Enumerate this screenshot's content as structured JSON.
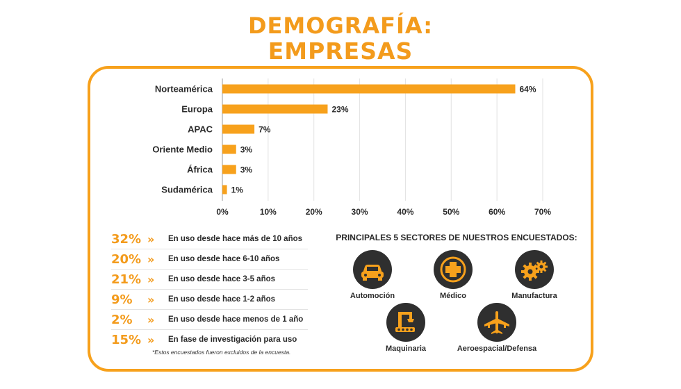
{
  "title_line1": "DEMOGRAFÍA:",
  "title_line2": "EMPRESAS",
  "chart_data": {
    "type": "bar",
    "orientation": "horizontal",
    "categories": [
      "Norteamérica",
      "Europa",
      "APAC",
      "Oriente Medio",
      "África",
      "Sudamérica"
    ],
    "values": [
      64,
      23,
      7,
      3,
      3,
      1
    ],
    "value_labels": [
      "64%",
      "23%",
      "7%",
      "3%",
      "3%",
      "1%"
    ],
    "xlim": [
      0,
      70
    ],
    "x_ticks": [
      "0%",
      "10%",
      "20%",
      "30%",
      "40%",
      "50%",
      "60%",
      "70%"
    ],
    "grid": true,
    "color": "#f7a11c"
  },
  "usage_stats": [
    {
      "pct": "32%",
      "arrow": "»",
      "text": "En uso desde hace más de 10 años"
    },
    {
      "pct": "20%",
      "arrow": "»",
      "text": "En uso desde hace 6-10 años"
    },
    {
      "pct": "21%",
      "arrow": "»",
      "text": "En uso desde hace 3-5 años"
    },
    {
      "pct": "9%",
      "arrow": "»",
      "text": "En uso desde hace 1-2 años"
    },
    {
      "pct": "2%",
      "arrow": "»",
      "text": "En uso desde hace menos de 1 año"
    },
    {
      "pct": "15%",
      "arrow": "»",
      "text": "En fase de investigación para uso"
    }
  ],
  "footnote": "*Estos encuestados fueron excluidos de la encuesta.",
  "sectors_title": "PRINCIPALES 5 SECTORES DE NUESTROS ENCUESTADOS:",
  "sectors": [
    {
      "label": "Automoción",
      "icon": "car-icon"
    },
    {
      "label": "Médico",
      "icon": "medical-cross-icon"
    },
    {
      "label": "Manufactura",
      "icon": "gears-icon"
    },
    {
      "label": "Maquinaria",
      "icon": "robotic-arm-icon"
    },
    {
      "label": "Aeroespacial/Defensa",
      "icon": "airplane-icon"
    }
  ]
}
